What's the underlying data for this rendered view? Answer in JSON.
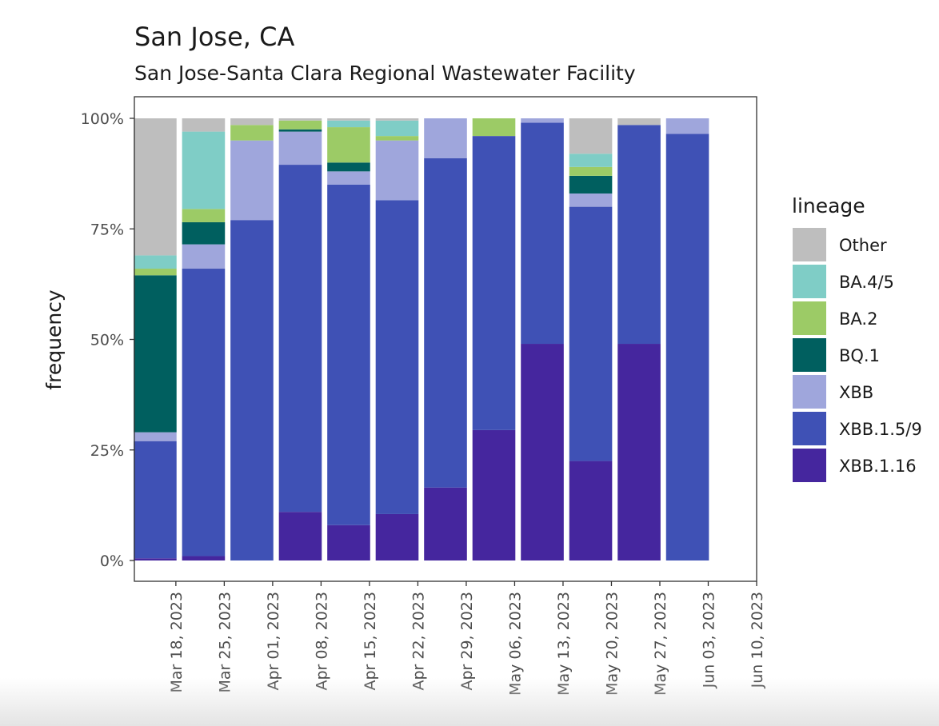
{
  "chart_data": {
    "type": "bar",
    "stacked": true,
    "title": "San Jose, CA",
    "subtitle": "San Jose-Santa Clara Regional Wastewater Facility",
    "xlabel": "",
    "ylabel": "frequency",
    "ylim": [
      0,
      1
    ],
    "y_ticks": [
      "0%",
      "25%",
      "50%",
      "75%",
      "100%"
    ],
    "x_tick_labels": [
      "Mar 18, 2023",
      "Mar 25, 2023",
      "Apr 01, 2023",
      "Apr 08, 2023",
      "Apr 15, 2023",
      "Apr 22, 2023",
      "Apr 29, 2023",
      "May 06, 2023",
      "May 13, 2023",
      "May 20, 2023",
      "May 27, 2023",
      "Jun 03, 2023",
      "Jun 10, 2023"
    ],
    "x_range": [
      "2023-03-12",
      "2023-06-10"
    ],
    "grid": false,
    "legend_title": "lineage",
    "legend_position": "right",
    "stack_order": [
      "XBB.1.16",
      "XBB.1.5/9",
      "XBB",
      "BQ.1",
      "BA.2",
      "BA.4/5",
      "Other"
    ],
    "series": [
      {
        "name": "Other",
        "color": "#bebebe"
      },
      {
        "name": "BA.4/5",
        "color": "#7fcdc6"
      },
      {
        "name": "BA.2",
        "color": "#9ccb66"
      },
      {
        "name": "BQ.1",
        "color": "#005f5f"
      },
      {
        "name": "XBB",
        "color": "#9fa6dc"
      },
      {
        "name": "XBB.1.5/9",
        "color": "#3f51b5"
      },
      {
        "name": "XBB.1.16",
        "color": "#45269e"
      }
    ],
    "bars": [
      {
        "date": "2023-03-15",
        "values": {
          "XBB.1.16": 0.005,
          "XBB.1.5/9": 0.265,
          "XBB": 0.02,
          "BQ.1": 0.355,
          "BA.2": 0.015,
          "BA.4/5": 0.03,
          "Other": 0.31
        }
      },
      {
        "date": "2023-03-22",
        "values": {
          "XBB.1.16": 0.01,
          "XBB.1.5/9": 0.65,
          "XBB": 0.055,
          "BQ.1": 0.05,
          "BA.2": 0.03,
          "BA.4/5": 0.175,
          "Other": 0.03
        }
      },
      {
        "date": "2023-03-29",
        "values": {
          "XBB.1.16": 0.0,
          "XBB.1.5/9": 0.77,
          "XBB": 0.18,
          "BQ.1": 0.0,
          "BA.2": 0.035,
          "BA.4/5": 0.0,
          "Other": 0.015
        }
      },
      {
        "date": "2023-04-05",
        "values": {
          "XBB.1.16": 0.11,
          "XBB.1.5/9": 0.785,
          "XBB": 0.075,
          "BQ.1": 0.005,
          "BA.2": 0.02,
          "BA.4/5": 0.0,
          "Other": 0.005
        }
      },
      {
        "date": "2023-04-12",
        "values": {
          "XBB.1.16": 0.08,
          "XBB.1.5/9": 0.77,
          "XBB": 0.03,
          "BQ.1": 0.02,
          "BA.2": 0.08,
          "BA.4/5": 0.015,
          "Other": 0.005
        }
      },
      {
        "date": "2023-04-19",
        "values": {
          "XBB.1.16": 0.105,
          "XBB.1.5/9": 0.71,
          "XBB": 0.135,
          "BQ.1": 0.0,
          "BA.2": 0.01,
          "BA.4/5": 0.035,
          "Other": 0.005
        }
      },
      {
        "date": "2023-04-26",
        "values": {
          "XBB.1.16": 0.165,
          "XBB.1.5/9": 0.745,
          "XBB": 0.09,
          "BQ.1": 0.0,
          "BA.2": 0.0,
          "BA.4/5": 0.0,
          "Other": 0.0
        }
      },
      {
        "date": "2023-05-03",
        "values": {
          "XBB.1.16": 0.295,
          "XBB.1.5/9": 0.665,
          "XBB": 0.0,
          "BQ.1": 0.0,
          "BA.2": 0.04,
          "BA.4/5": 0.0,
          "Other": 0.0
        }
      },
      {
        "date": "2023-05-10",
        "values": {
          "XBB.1.16": 0.49,
          "XBB.1.5/9": 0.5,
          "XBB": 0.01,
          "BQ.1": 0.0,
          "BA.2": 0.0,
          "BA.4/5": 0.0,
          "Other": 0.0
        }
      },
      {
        "date": "2023-05-17",
        "values": {
          "XBB.1.16": 0.225,
          "XBB.1.5/9": 0.575,
          "XBB": 0.03,
          "BQ.1": 0.04,
          "BA.2": 0.02,
          "BA.4/5": 0.03,
          "Other": 0.08
        }
      },
      {
        "date": "2023-05-24",
        "values": {
          "XBB.1.16": 0.49,
          "XBB.1.5/9": 0.495,
          "XBB": 0.0,
          "BQ.1": 0.0,
          "BA.2": 0.0,
          "BA.4/5": 0.0,
          "Other": 0.015
        }
      },
      {
        "date": "2023-05-31",
        "values": {
          "XBB.1.16": 0.0,
          "XBB.1.5/9": 0.965,
          "XBB": 0.035,
          "BQ.1": 0.0,
          "BA.2": 0.0,
          "BA.4/5": 0.0,
          "Other": 0.0
        }
      }
    ]
  }
}
